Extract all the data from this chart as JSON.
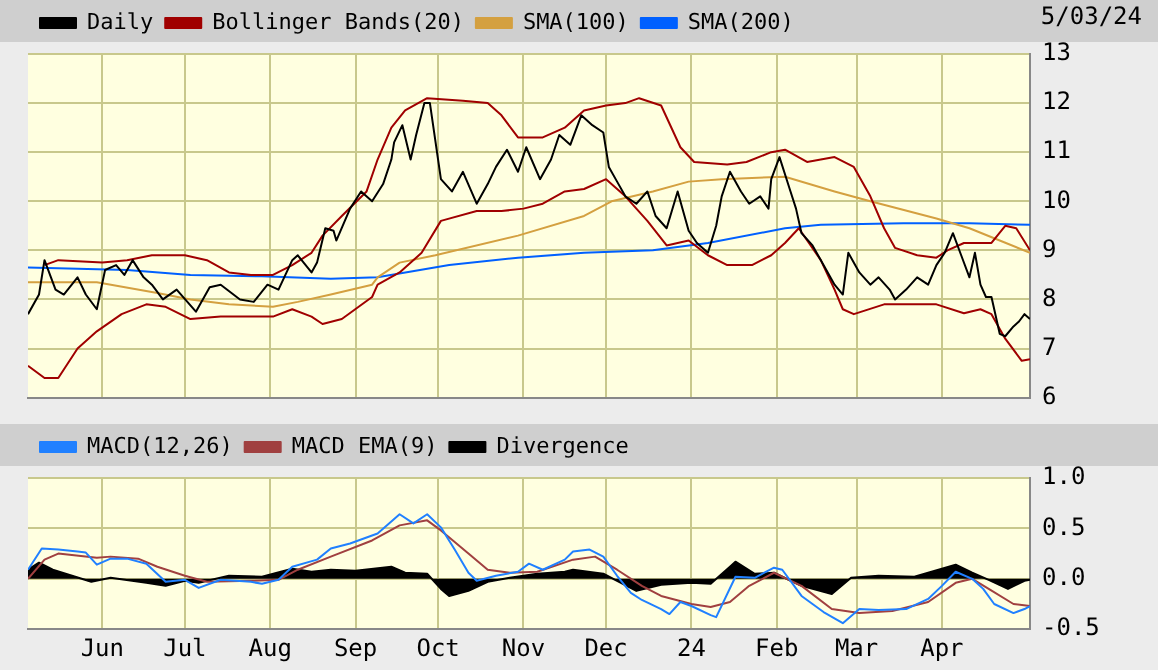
{
  "chart_data": [
    {
      "type": "line",
      "annotations": [
        "5/03/24"
      ],
      "legend": "top left",
      "grid": true,
      "marker": "none",
      "tick_labels": "y",
      "xlim": [
        "2023-05-05",
        "2024-05-03"
      ],
      "xticks": [
        {
          "value": "2023-06-01",
          "label": null
        },
        {
          "value": "2023-07-01",
          "label": null
        },
        {
          "value": "2023-08-01",
          "label": null
        },
        {
          "value": "2023-09-01",
          "label": null
        },
        {
          "value": "2023-10-01",
          "label": null
        },
        {
          "value": "2023-11-01",
          "label": null
        },
        {
          "value": "2023-12-01",
          "label": null
        },
        {
          "value": "2024-01-01",
          "label": null
        },
        {
          "value": "2024-02-01",
          "label": null
        },
        {
          "value": "2024-03-01",
          "label": null
        },
        {
          "value": "2024-04-01",
          "label": null
        }
      ],
      "ylim": [
        6,
        13
      ],
      "yticks": [
        6,
        7,
        8,
        9,
        10,
        11,
        12,
        13
      ],
      "series": [
        {
          "name": "Daily",
          "color": "#000000",
          "x": [
            "2023-05-05",
            "2023-05-09",
            "2023-05-11",
            "2023-05-15",
            "2023-05-18",
            "2023-05-23",
            "2023-05-26",
            "2023-05-30",
            "2023-06-02",
            "2023-06-06",
            "2023-06-09",
            "2023-06-12",
            "2023-06-16",
            "2023-06-19",
            "2023-06-23",
            "2023-06-28",
            "2023-07-05",
            "2023-07-10",
            "2023-07-14",
            "2023-07-21",
            "2023-07-26",
            "2023-07-31",
            "2023-08-04",
            "2023-08-09",
            "2023-08-11",
            "2023-08-16",
            "2023-08-18",
            "2023-08-21",
            "2023-08-24",
            "2023-08-25",
            "2023-08-30",
            "2023-09-03",
            "2023-09-07",
            "2023-09-11",
            "2023-09-14",
            "2023-09-15",
            "2023-09-18",
            "2023-09-21",
            "2023-09-23",
            "2023-09-26",
            "2023-09-28",
            "2023-10-02",
            "2023-10-06",
            "2023-10-10",
            "2023-10-15",
            "2023-10-19",
            "2023-10-22",
            "2023-10-26",
            "2023-10-30",
            "2023-11-02",
            "2023-11-07",
            "2023-11-11",
            "2023-11-14",
            "2023-11-18",
            "2023-11-22",
            "2023-11-26",
            "2023-11-30",
            "2023-12-02",
            "2023-12-05",
            "2023-12-08",
            "2023-12-12",
            "2023-12-16",
            "2023-12-19",
            "2023-12-23",
            "2023-12-27",
            "2023-12-31",
            "2024-01-03",
            "2024-01-07",
            "2024-01-10",
            "2024-01-12",
            "2024-01-15",
            "2024-01-19",
            "2024-01-22",
            "2024-01-26",
            "2024-01-29",
            "2024-01-30",
            "2024-02-02",
            "2024-02-06",
            "2024-02-08",
            "2024-02-10",
            "2024-02-14",
            "2024-02-18",
            "2024-02-22",
            "2024-02-25",
            "2024-02-27",
            "2024-03-02",
            "2024-03-06",
            "2024-03-09",
            "2024-03-13",
            "2024-03-15",
            "2024-03-19",
            "2024-03-23",
            "2024-03-27",
            "2024-03-30",
            "2024-04-02",
            "2024-04-05",
            "2024-04-08",
            "2024-04-11",
            "2024-04-13",
            "2024-04-15",
            "2024-04-17",
            "2024-04-19",
            "2024-04-22",
            "2024-04-24",
            "2024-04-27",
            "2024-04-29",
            "2024-05-01",
            "2024-05-03"
          ],
          "values": [
            7.7,
            8.1,
            8.8,
            8.2,
            8.1,
            8.45,
            8.1,
            7.8,
            8.6,
            8.7,
            8.5,
            8.8,
            8.45,
            8.3,
            8.0,
            8.2,
            7.75,
            8.25,
            8.3,
            8.0,
            7.95,
            8.3,
            8.2,
            8.8,
            8.9,
            8.55,
            8.75,
            9.45,
            9.4,
            9.2,
            9.85,
            10.2,
            10.0,
            10.35,
            10.85,
            11.2,
            11.55,
            10.85,
            11.35,
            12.0,
            12.0,
            10.45,
            10.2,
            10.6,
            9.95,
            10.35,
            10.7,
            11.05,
            10.6,
            11.1,
            10.45,
            10.85,
            11.35,
            11.15,
            11.75,
            11.55,
            11.4,
            10.7,
            10.4,
            10.1,
            9.95,
            10.2,
            9.7,
            9.45,
            10.2,
            9.4,
            9.15,
            8.95,
            9.5,
            10.1,
            10.6,
            10.2,
            9.95,
            10.1,
            9.85,
            10.45,
            10.9,
            10.2,
            9.85,
            9.35,
            9.1,
            8.7,
            8.3,
            8.1,
            8.95,
            8.55,
            8.3,
            8.45,
            8.2,
            8.0,
            8.2,
            8.45,
            8.3,
            8.7,
            8.95,
            9.35,
            8.9,
            8.45,
            8.95,
            8.3,
            8.05,
            8.05,
            7.3,
            7.25,
            7.45,
            7.55,
            7.7,
            7.6
          ]
        },
        {
          "name": "Bollinger Bands(20)",
          "color": "#a00000",
          "x": [
            "2023-05-11",
            "2023-05-16",
            "2023-06-01",
            "2023-06-10",
            "2023-06-19",
            "2023-07-01",
            "2023-07-09",
            "2023-07-17",
            "2023-07-25",
            "2023-08-02",
            "2023-08-09",
            "2023-08-16",
            "2023-08-20",
            "2023-08-27",
            "2023-09-05",
            "2023-09-09",
            "2023-09-14",
            "2023-09-19",
            "2023-09-27",
            "2023-10-10",
            "2023-10-19",
            "2023-10-24",
            "2023-10-30",
            "2023-11-08",
            "2023-11-16",
            "2023-11-23",
            "2023-12-01",
            "2023-12-08",
            "2023-12-13",
            "2023-12-21",
            "2023-12-28",
            "2024-01-02",
            "2024-01-14",
            "2024-01-21",
            "2024-01-30",
            "2024-02-04",
            "2024-02-12",
            "2024-02-22",
            "2024-02-29",
            "2024-03-06",
            "2024-03-11",
            "2024-03-15",
            "2024-03-23",
            "2024-03-30",
            "2024-04-03",
            "2024-04-09",
            "2024-04-19",
            "2024-04-24",
            "2024-04-28",
            "2024-05-03"
          ],
          "values": [
            8.7,
            8.8,
            8.75,
            8.8,
            8.9,
            8.9,
            8.8,
            8.55,
            8.5,
            8.5,
            8.7,
            8.95,
            9.3,
            9.7,
            10.2,
            10.85,
            11.5,
            11.85,
            12.1,
            12.05,
            12.0,
            11.75,
            11.3,
            11.3,
            11.5,
            11.85,
            11.95,
            12.0,
            12.1,
            11.95,
            11.1,
            10.8,
            10.75,
            10.8,
            11.0,
            11.05,
            10.8,
            10.9,
            10.7,
            10.1,
            9.45,
            9.05,
            8.9,
            8.85,
            9.0,
            9.15,
            9.15,
            9.5,
            9.45,
            9.0
          ]
        },
        {
          "color": "#a00000",
          "x": [
            "2023-05-05",
            "2023-05-11",
            "2023-05-16",
            "2023-05-23",
            "2023-05-30",
            "2023-06-08",
            "2023-06-17",
            "2023-06-24",
            "2023-07-03",
            "2023-07-14",
            "2023-07-25",
            "2023-08-02",
            "2023-08-09",
            "2023-08-16",
            "2023-08-20",
            "2023-08-27",
            "2023-09-07",
            "2023-09-09",
            "2023-09-17",
            "2023-09-25",
            "2023-10-02",
            "2023-10-15",
            "2023-10-24",
            "2023-11-01",
            "2023-11-08",
            "2023-11-16",
            "2023-11-23",
            "2023-12-01",
            "2023-12-08",
            "2023-12-16",
            "2023-12-23",
            "2023-12-31",
            "2024-01-07",
            "2024-01-14",
            "2024-01-23",
            "2024-01-30",
            "2024-02-04",
            "2024-02-09",
            "2024-02-17",
            "2024-02-22",
            "2024-02-25",
            "2024-02-29",
            "2024-03-11",
            "2024-03-30",
            "2024-04-09",
            "2024-04-15",
            "2024-04-19",
            "2024-04-24",
            "2024-04-30",
            "2024-05-03"
          ],
          "values": [
            6.65,
            6.4,
            6.4,
            7.0,
            7.35,
            7.7,
            7.9,
            7.85,
            7.6,
            7.65,
            7.65,
            7.65,
            7.8,
            7.65,
            7.5,
            7.6,
            8.05,
            8.3,
            8.55,
            8.95,
            9.6,
            9.8,
            9.8,
            9.85,
            9.95,
            10.2,
            10.25,
            10.45,
            10.1,
            9.6,
            9.1,
            9.2,
            8.9,
            8.7,
            8.7,
            8.9,
            9.15,
            9.45,
            8.8,
            8.2,
            7.8,
            7.7,
            7.9,
            7.9,
            7.72,
            7.8,
            7.7,
            7.2,
            6.75,
            6.78
          ]
        },
        {
          "name": "SMA(100)",
          "color": "#d4a040",
          "x": [
            "2023-05-05",
            "2023-05-30",
            "2023-06-21",
            "2023-07-03",
            "2023-07-17",
            "2023-08-02",
            "2023-08-11",
            "2023-08-23",
            "2023-09-07",
            "2023-09-09",
            "2023-09-17",
            "2023-09-30",
            "2023-10-30",
            "2023-11-23",
            "2023-12-03",
            "2023-12-18",
            "2023-12-31",
            "2024-01-12",
            "2024-02-04",
            "2024-02-22",
            "2024-03-06",
            "2024-03-30",
            "2024-04-11",
            "2024-04-22",
            "2024-05-03"
          ],
          "values": [
            8.35,
            8.35,
            8.13,
            8.0,
            7.9,
            7.85,
            7.95,
            8.1,
            8.3,
            8.45,
            8.75,
            8.9,
            9.3,
            9.7,
            10.0,
            10.2,
            10.4,
            10.45,
            10.5,
            10.2,
            10.0,
            9.65,
            9.45,
            9.2,
            8.95
          ]
        },
        {
          "name": "SMA(200)",
          "color": "#0060ff",
          "x": [
            "2023-05-05",
            "2023-06-10",
            "2023-07-03",
            "2023-07-29",
            "2023-08-23",
            "2023-09-09",
            "2023-10-05",
            "2023-10-30",
            "2023-11-23",
            "2023-12-18",
            "2024-01-07",
            "2024-02-04",
            "2024-02-17",
            "2024-03-18",
            "2024-04-11",
            "2024-05-03"
          ],
          "values": [
            8.65,
            8.6,
            8.5,
            8.47,
            8.42,
            8.45,
            8.7,
            8.85,
            8.95,
            9.0,
            9.15,
            9.45,
            9.52,
            9.55,
            9.55,
            9.52
          ]
        }
      ]
    },
    {
      "type": "line",
      "legend": "top left",
      "grid": true,
      "marker": "none",
      "xlim": [
        "2023-05-05",
        "2024-05-03"
      ],
      "xticks": [
        {
          "value": "2023-06-01",
          "label": "Jun"
        },
        {
          "value": "2023-07-01",
          "label": "Jul"
        },
        {
          "value": "2023-08-01",
          "label": "Aug"
        },
        {
          "value": "2023-09-01",
          "label": "Sep"
        },
        {
          "value": "2023-10-01",
          "label": "Oct"
        },
        {
          "value": "2023-11-01",
          "label": "Nov"
        },
        {
          "value": "2023-12-01",
          "label": "Dec"
        },
        {
          "value": "2024-01-01",
          "label": "24"
        },
        {
          "value": "2024-02-01",
          "label": "Feb"
        },
        {
          "value": "2024-03-01",
          "label": "Mar"
        },
        {
          "value": "2024-04-01",
          "label": "Apr"
        }
      ],
      "ylim": [
        -0.5,
        1
      ],
      "yticks": [
        -0.5,
        {
          "value": 0,
          "label": "0.0"
        },
        0.5,
        {
          "value": 1,
          "label": "1.0"
        }
      ],
      "series": [
        {
          "name": "MACD(12,26)",
          "color": "#2080ff",
          "x": [
            "2023-05-05",
            "2023-05-10",
            "2023-05-16",
            "2023-05-23",
            "2023-05-26",
            "2023-05-30",
            "2023-06-04",
            "2023-06-10",
            "2023-06-17",
            "2023-06-24",
            "2023-07-01",
            "2023-07-06",
            "2023-07-14",
            "2023-07-25",
            "2023-07-29",
            "2023-08-04",
            "2023-08-09",
            "2023-08-18",
            "2023-08-23",
            "2023-08-30",
            "2023-09-09",
            "2023-09-17",
            "2023-09-22",
            "2023-09-27",
            "2023-10-02",
            "2023-10-07",
            "2023-10-12",
            "2023-10-15",
            "2023-10-22",
            "2023-10-30",
            "2023-11-03",
            "2023-11-08",
            "2023-11-16",
            "2023-11-19",
            "2023-11-25",
            "2023-11-30",
            "2023-12-05",
            "2023-12-10",
            "2023-12-14",
            "2023-12-21",
            "2023-12-24",
            "2023-12-28",
            "2024-01-01",
            "2024-01-08",
            "2024-01-10",
            "2024-01-17",
            "2024-01-24",
            "2024-01-31",
            "2024-02-03",
            "2024-02-10",
            "2024-02-18",
            "2024-02-25",
            "2024-03-02",
            "2024-03-09",
            "2024-03-19",
            "2024-03-27",
            "2024-04-01",
            "2024-04-06",
            "2024-04-12",
            "2024-04-16",
            "2024-04-20",
            "2024-04-27",
            "2024-05-01",
            "2024-05-03"
          ],
          "values": [
            0.09,
            0.3,
            0.29,
            0.27,
            0.26,
            0.14,
            0.2,
            0.2,
            0.15,
            -0.03,
            -0.01,
            -0.09,
            -0.01,
            -0.03,
            -0.05,
            -0.01,
            0.12,
            0.19,
            0.3,
            0.35,
            0.45,
            0.64,
            0.55,
            0.64,
            0.51,
            0.29,
            0.06,
            -0.02,
            0.03,
            0.07,
            0.15,
            0.09,
            0.19,
            0.27,
            0.29,
            0.22,
            0.03,
            -0.14,
            -0.21,
            -0.3,
            -0.35,
            -0.23,
            -0.27,
            -0.36,
            -0.38,
            0.02,
            0.01,
            0.11,
            0.09,
            -0.17,
            -0.33,
            -0.44,
            -0.3,
            -0.31,
            -0.3,
            -0.2,
            -0.07,
            0.07,
            0.0,
            -0.1,
            -0.25,
            -0.34,
            -0.3,
            -0.27
          ]
        },
        {
          "name": "MACD EMA(9)",
          "color": "#a04040",
          "x": [
            "2023-05-05",
            "2023-05-11",
            "2023-05-16",
            "2023-05-30",
            "2023-06-04",
            "2023-06-14",
            "2023-06-21",
            "2023-07-01",
            "2023-07-09",
            "2023-07-25",
            "2023-08-04",
            "2023-08-11",
            "2023-08-23",
            "2023-09-07",
            "2023-09-17",
            "2023-09-27",
            "2023-10-02",
            "2023-10-12",
            "2023-10-19",
            "2023-10-27",
            "2023-11-06",
            "2023-11-19",
            "2023-11-27",
            "2023-12-05",
            "2023-12-14",
            "2023-12-21",
            "2024-01-01",
            "2024-01-08",
            "2024-01-15",
            "2024-01-22",
            "2024-01-31",
            "2024-02-10",
            "2024-02-21",
            "2024-03-02",
            "2024-03-14",
            "2024-03-27",
            "2024-04-06",
            "2024-04-12",
            "2024-04-18",
            "2024-04-27",
            "2024-05-03"
          ],
          "values": [
            0.0,
            0.19,
            0.25,
            0.21,
            0.22,
            0.2,
            0.12,
            0.03,
            -0.03,
            -0.02,
            -0.01,
            0.09,
            0.22,
            0.38,
            0.53,
            0.58,
            0.48,
            0.25,
            0.09,
            0.06,
            0.07,
            0.19,
            0.22,
            0.09,
            -0.07,
            -0.17,
            -0.25,
            -0.28,
            -0.23,
            -0.07,
            0.06,
            -0.07,
            -0.3,
            -0.34,
            -0.32,
            -0.23,
            -0.04,
            0.0,
            -0.1,
            -0.25,
            -0.27
          ]
        },
        {
          "name": "Divergence",
          "type": "area",
          "color": "#000000",
          "x": [
            "2023-05-05",
            "2023-05-09",
            "2023-05-14",
            "2023-05-21",
            "2023-05-28",
            "2023-06-04",
            "2023-06-17",
            "2023-06-24",
            "2023-07-01",
            "2023-07-06",
            "2023-07-17",
            "2023-07-29",
            "2023-08-09",
            "2023-08-16",
            "2023-08-23",
            "2023-09-01",
            "2023-09-14",
            "2023-09-19",
            "2023-09-27",
            "2023-10-02",
            "2023-10-05",
            "2023-10-12",
            "2023-10-19",
            "2023-10-27",
            "2023-11-06",
            "2023-11-16",
            "2023-11-19",
            "2023-11-30",
            "2023-12-05",
            "2023-12-12",
            "2023-12-21",
            "2024-01-01",
            "2024-01-08",
            "2024-01-15",
            "2024-01-17",
            "2024-01-24",
            "2024-01-31",
            "2024-02-10",
            "2024-02-21",
            "2024-02-28",
            "2024-03-09",
            "2024-03-22",
            "2024-04-01",
            "2024-04-06",
            "2024-04-12",
            "2024-04-18",
            "2024-04-25",
            "2024-05-01",
            "2024-05-03"
          ],
          "values": [
            0.09,
            0.16,
            0.09,
            0.03,
            -0.03,
            0.01,
            -0.04,
            -0.07,
            -0.02,
            -0.04,
            0.03,
            0.02,
            0.1,
            0.07,
            0.09,
            0.08,
            0.12,
            0.06,
            0.05,
            -0.1,
            -0.17,
            -0.12,
            -0.03,
            0.01,
            0.05,
            0.07,
            0.09,
            0.05,
            -0.02,
            -0.12,
            -0.06,
            -0.04,
            -0.05,
            0.12,
            0.17,
            0.05,
            0.06,
            -0.07,
            -0.15,
            0.01,
            0.03,
            0.02,
            0.1,
            0.14,
            0.06,
            -0.01,
            -0.1,
            -0.02,
            -0.01
          ]
        }
      ]
    }
  ]
}
